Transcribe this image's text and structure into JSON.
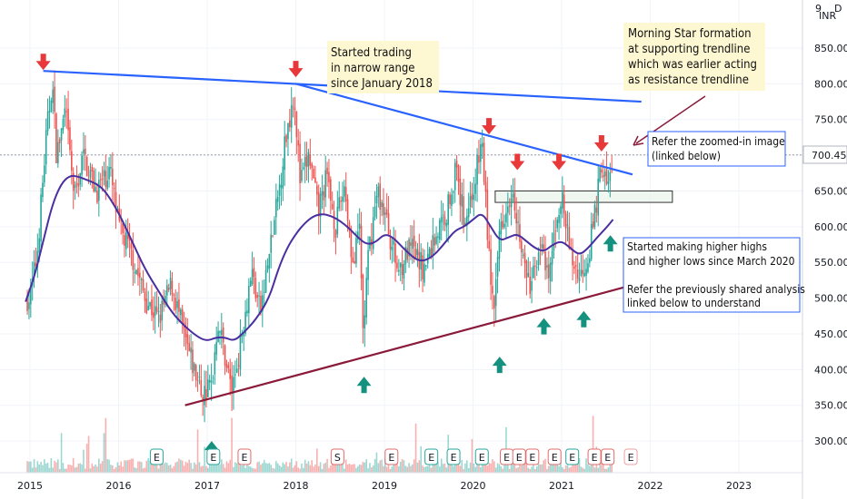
{
  "currency_label": "INR",
  "last_price_label": "700.45",
  "annotations": {
    "narrow_range": [
      "Started trading",
      "in narrow range",
      "since January 2018"
    ],
    "morning_star": [
      "Morning Star formation",
      "at supporting trendline",
      "which was earlier acting",
      "as resistance trendline"
    ],
    "zoomed": [
      "Refer the zoomed-in image",
      "(linked below)"
    ],
    "higher_highs": [
      "Started making higher highs",
      "and higher lows since March 2020",
      "",
      "Refer the previously shared analysis",
      "linked below to understand"
    ]
  },
  "colors": {
    "price_up": "#26a69a",
    "price_down": "#ef5350",
    "moving_average": "#4a2fa0",
    "resistance_trendline": "#2962ff",
    "support_trendline": "#8b1a3a",
    "arrow_down": "#e8383a",
    "arrow_up": "#14917f",
    "note_background": "#fdf7d2",
    "note_box_border": "#2962ff"
  },
  "chart_data": {
    "type": "candlestick",
    "x_axis": {
      "ticks": [
        "2015",
        "2016",
        "2017",
        "2018",
        "2019",
        "2020",
        "2021",
        "2022",
        "2023"
      ]
    },
    "y_axis": {
      "position": "right",
      "ticks": [
        300,
        350,
        400,
        450,
        500,
        550,
        600,
        650,
        700,
        750,
        800,
        850
      ],
      "tick_labels": [
        "300.00",
        "350.00",
        "400.00",
        "450.00",
        "500.00",
        "550.00",
        "600.00",
        "650.00",
        "700.00",
        "750.00",
        "800.00",
        "850.00"
      ],
      "range": [
        256,
        900
      ]
    },
    "price_path": [
      [
        2015.0,
        500
      ],
      [
        2015.08,
        560
      ],
      [
        2015.18,
        720
      ],
      [
        2015.25,
        805
      ],
      [
        2015.3,
        700
      ],
      [
        2015.4,
        760
      ],
      [
        2015.5,
        640
      ],
      [
        2015.6,
        700
      ],
      [
        2015.75,
        650
      ],
      [
        2015.9,
        680
      ],
      [
        2016.0,
        600
      ],
      [
        2016.15,
        560
      ],
      [
        2016.3,
        500
      ],
      [
        2016.45,
        470
      ],
      [
        2016.6,
        520
      ],
      [
        2016.75,
        440
      ],
      [
        2016.85,
        400
      ],
      [
        2016.95,
        365
      ],
      [
        2017.05,
        380
      ],
      [
        2017.12,
        470
      ],
      [
        2017.2,
        420
      ],
      [
        2017.28,
        370
      ],
      [
        2017.38,
        440
      ],
      [
        2017.5,
        540
      ],
      [
        2017.6,
        480
      ],
      [
        2017.7,
        560
      ],
      [
        2017.8,
        640
      ],
      [
        2017.88,
        720
      ],
      [
        2017.98,
        790
      ],
      [
        2018.05,
        660
      ],
      [
        2018.15,
        700
      ],
      [
        2018.25,
        620
      ],
      [
        2018.35,
        670
      ],
      [
        2018.45,
        600
      ],
      [
        2018.55,
        660
      ],
      [
        2018.65,
        540
      ],
      [
        2018.72,
        600
      ],
      [
        2018.76,
        450
      ],
      [
        2018.82,
        560
      ],
      [
        2018.92,
        650
      ],
      [
        2019.0,
        620
      ],
      [
        2019.15,
        540
      ],
      [
        2019.3,
        570
      ],
      [
        2019.45,
        540
      ],
      [
        2019.55,
        580
      ],
      [
        2019.7,
        620
      ],
      [
        2019.8,
        680
      ],
      [
        2019.9,
        610
      ],
      [
        2020.0,
        650
      ],
      [
        2020.1,
        720
      ],
      [
        2020.18,
        560
      ],
      [
        2020.24,
        470
      ],
      [
        2020.3,
        600
      ],
      [
        2020.45,
        660
      ],
      [
        2020.55,
        560
      ],
      [
        2020.65,
        510
      ],
      [
        2020.75,
        580
      ],
      [
        2020.85,
        520
      ],
      [
        2020.95,
        620
      ],
      [
        2021.0,
        640
      ],
      [
        2021.1,
        560
      ],
      [
        2021.2,
        530
      ],
      [
        2021.3,
        560
      ],
      [
        2021.4,
        640
      ],
      [
        2021.45,
        690
      ],
      [
        2021.52,
        650
      ],
      [
        2021.58,
        700.45
      ]
    ],
    "moving_average_path": [
      [
        2014.95,
        495
      ],
      [
        2015.05,
        530
      ],
      [
        2015.15,
        580
      ],
      [
        2015.25,
        630
      ],
      [
        2015.35,
        660
      ],
      [
        2015.45,
        672
      ],
      [
        2015.55,
        670
      ],
      [
        2015.65,
        665
      ],
      [
        2015.75,
        660
      ],
      [
        2015.85,
        650
      ],
      [
        2016.0,
        620
      ],
      [
        2016.15,
        580
      ],
      [
        2016.3,
        540
      ],
      [
        2016.45,
        510
      ],
      [
        2016.6,
        480
      ],
      [
        2016.75,
        460
      ],
      [
        2016.9,
        445
      ],
      [
        2017.0,
        440
      ],
      [
        2017.1,
        445
      ],
      [
        2017.2,
        445
      ],
      [
        2017.3,
        440
      ],
      [
        2017.4,
        450
      ],
      [
        2017.55,
        470
      ],
      [
        2017.7,
        500
      ],
      [
        2017.8,
        540
      ],
      [
        2017.9,
        570
      ],
      [
        2018.0,
        590
      ],
      [
        2018.1,
        605
      ],
      [
        2018.2,
        615
      ],
      [
        2018.3,
        618
      ],
      [
        2018.4,
        615
      ],
      [
        2018.5,
        608
      ],
      [
        2018.6,
        598
      ],
      [
        2018.7,
        585
      ],
      [
        2018.8,
        575
      ],
      [
        2018.9,
        578
      ],
      [
        2019.0,
        590
      ],
      [
        2019.1,
        585
      ],
      [
        2019.25,
        565
      ],
      [
        2019.4,
        550
      ],
      [
        2019.55,
        558
      ],
      [
        2019.7,
        580
      ],
      [
        2019.8,
        595
      ],
      [
        2019.9,
        600
      ],
      [
        2020.0,
        610
      ],
      [
        2020.1,
        620
      ],
      [
        2020.2,
        600
      ],
      [
        2020.3,
        580
      ],
      [
        2020.4,
        585
      ],
      [
        2020.5,
        590
      ],
      [
        2020.6,
        580
      ],
      [
        2020.7,
        570
      ],
      [
        2020.8,
        565
      ],
      [
        2020.9,
        575
      ],
      [
        2021.0,
        580
      ],
      [
        2021.1,
        570
      ],
      [
        2021.2,
        560
      ],
      [
        2021.3,
        570
      ],
      [
        2021.4,
        585
      ],
      [
        2021.5,
        598
      ],
      [
        2021.58,
        610
      ]
    ],
    "trendlines": [
      {
        "role": "resistance",
        "from": [
          2015.15,
          818
        ],
        "to": [
          2021.9,
          775
        ]
      },
      {
        "role": "resistance",
        "from": [
          2018.0,
          800
        ],
        "to": [
          2021.8,
          673
        ]
      },
      {
        "role": "support",
        "from": [
          2016.75,
          350
        ],
        "to": [
          2022.15,
          530
        ]
      }
    ],
    "zone": {
      "from": [
        2020.25,
        650
      ],
      "to": [
        2022.25,
        634
      ]
    },
    "down_arrows": [
      [
        2015.15,
        842
      ],
      [
        2018.0,
        832
      ],
      [
        2020.18,
        752
      ],
      [
        2020.5,
        702
      ],
      [
        2020.97,
        702
      ],
      [
        2021.45,
        728
      ]
    ],
    "up_arrows": [
      [
        2017.05,
        300
      ],
      [
        2018.77,
        390
      ],
      [
        2020.3,
        418
      ],
      [
        2020.8,
        472
      ],
      [
        2021.25,
        482
      ],
      [
        2021.55,
        588
      ]
    ],
    "event_markers": [
      [
        2016.43,
        "E"
      ],
      [
        2017.07,
        "E"
      ],
      [
        2017.42,
        "E"
      ],
      [
        2018.47,
        "S"
      ],
      [
        2019.08,
        "E"
      ],
      [
        2019.53,
        "E"
      ],
      [
        2019.78,
        "E"
      ],
      [
        2020.1,
        "E"
      ],
      [
        2020.38,
        "E"
      ],
      [
        2020.52,
        "E"
      ],
      [
        2020.67,
        "E"
      ],
      [
        2020.92,
        "E"
      ],
      [
        2021.12,
        "E"
      ],
      [
        2021.37,
        "E"
      ],
      [
        2021.52,
        "E"
      ],
      [
        2021.78,
        "E"
      ]
    ]
  }
}
